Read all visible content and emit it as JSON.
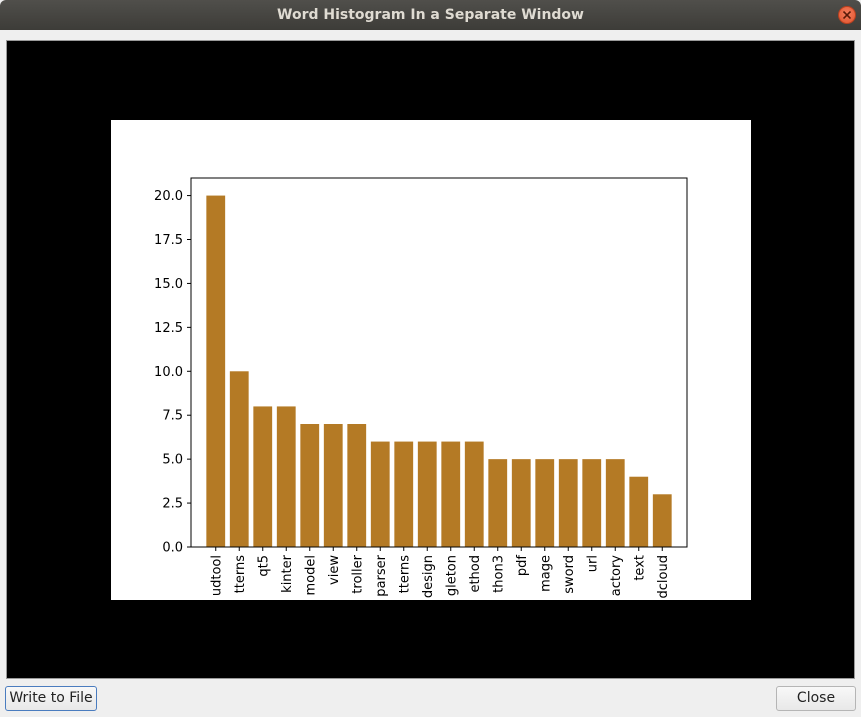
{
  "window": {
    "title": "Word Histogram In a Separate Window"
  },
  "buttons": {
    "write_label": "Write to File",
    "close_label": "Close"
  },
  "colors": {
    "bar": "#b47a25",
    "canvas_bg": "#000000",
    "figure_bg": "#ffffff"
  },
  "chart_data": {
    "type": "bar",
    "title": "",
    "xlabel": "",
    "ylabel": "",
    "categories": [
      "udtool",
      "tterns",
      "qt5",
      "kinter",
      "model",
      "view",
      "troller",
      "parser",
      "tterns",
      "design",
      "gleton",
      "ethod",
      "thon3",
      "pdf",
      "mage",
      "sword",
      "url",
      "actory",
      "text",
      "dcloud"
    ],
    "values": [
      20,
      10,
      8,
      8,
      7,
      7,
      7,
      6,
      6,
      6,
      6,
      6,
      5,
      5,
      5,
      5,
      5,
      5,
      4,
      3
    ],
    "ylim": [
      0,
      21
    ],
    "yticks": [
      "0.0",
      "2.5",
      "5.0",
      "7.5",
      "10.0",
      "12.5",
      "15.0",
      "17.5",
      "20.0"
    ],
    "grid": false
  }
}
